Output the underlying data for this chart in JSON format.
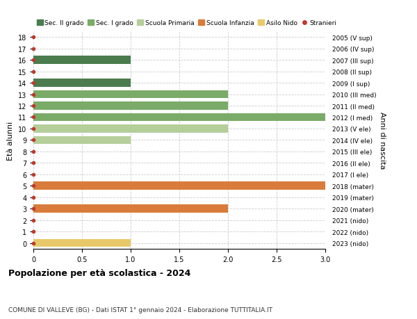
{
  "ages": [
    18,
    17,
    16,
    15,
    14,
    13,
    12,
    11,
    10,
    9,
    8,
    7,
    6,
    5,
    4,
    3,
    2,
    1,
    0
  ],
  "years": [
    "2005 (V sup)",
    "2006 (IV sup)",
    "2007 (III sup)",
    "2008 (II sup)",
    "2009 (I sup)",
    "2010 (III med)",
    "2011 (II med)",
    "2012 (I med)",
    "2013 (V ele)",
    "2014 (IV ele)",
    "2015 (III ele)",
    "2016 (II ele)",
    "2017 (I ele)",
    "2018 (mater)",
    "2019 (mater)",
    "2020 (mater)",
    "2021 (nido)",
    "2022 (nido)",
    "2023 (nido)"
  ],
  "values": [
    0,
    0,
    1,
    0,
    1,
    2,
    2,
    3,
    2,
    1,
    0,
    0,
    0,
    3,
    0,
    2,
    0,
    0,
    1
  ],
  "colors": [
    "#4a7c4e",
    "#4a7c4e",
    "#4a7c4e",
    "#4a7c4e",
    "#4a7c4e",
    "#7aab68",
    "#7aab68",
    "#7aab68",
    "#b5ce9a",
    "#b5ce9a",
    "#b5ce9a",
    "#b5ce9a",
    "#b5ce9a",
    "#d97b3a",
    "#d97b3a",
    "#d97b3a",
    "#e8c96a",
    "#e8c96a",
    "#e8c96a"
  ],
  "dot_color": "#c0392b",
  "legend_labels": [
    "Sec. II grado",
    "Sec. I grado",
    "Scuola Primaria",
    "Scuola Infanzia",
    "Asilo Nido",
    "Stranieri"
  ],
  "legend_colors": [
    "#4a7c4e",
    "#7aab68",
    "#b5ce9a",
    "#d97b3a",
    "#e8c96a",
    "#c0392b"
  ],
  "title": "Popolazione per età scolastica - 2024",
  "subtitle": "COMUNE DI VALLEVE (BG) - Dati ISTAT 1° gennaio 2024 - Elaborazione TUTTITALIA.IT",
  "ylabel": "Età alunni",
  "right_ylabel": "Anni di nascita",
  "xlim": [
    0,
    3.0
  ],
  "bar_height": 0.7,
  "grid_color": "#cccccc",
  "bg_color": "#ffffff"
}
